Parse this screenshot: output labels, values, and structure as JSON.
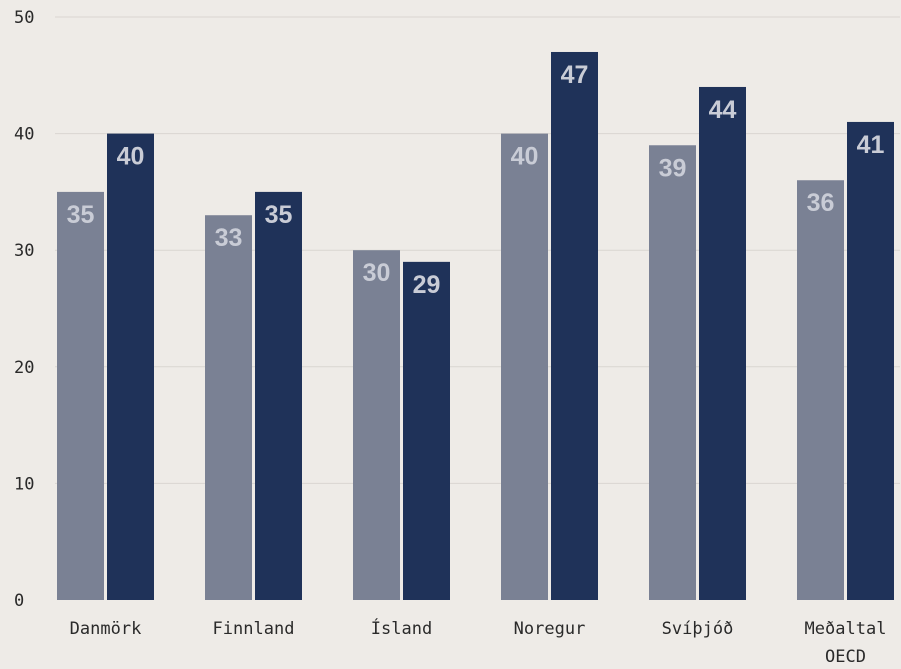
{
  "chart_data": {
    "type": "bar",
    "categories": [
      "Danmörk",
      "Finnland",
      "Ísland",
      "Noregur",
      "Svíþjóð",
      "Meðaltal OECD"
    ],
    "series": [
      {
        "values": [
          35,
          33,
          30,
          40,
          39,
          36
        ],
        "color": "#7a8194"
      },
      {
        "values": [
          40,
          35,
          29,
          47,
          44,
          41
        ],
        "color": "#1f3259"
      }
    ],
    "ylim": [
      0,
      50
    ],
    "yticks": [
      0,
      10,
      20,
      30,
      40,
      50
    ],
    "grid": true,
    "legend": "none",
    "title": "",
    "xlabel": "",
    "ylabel": ""
  }
}
